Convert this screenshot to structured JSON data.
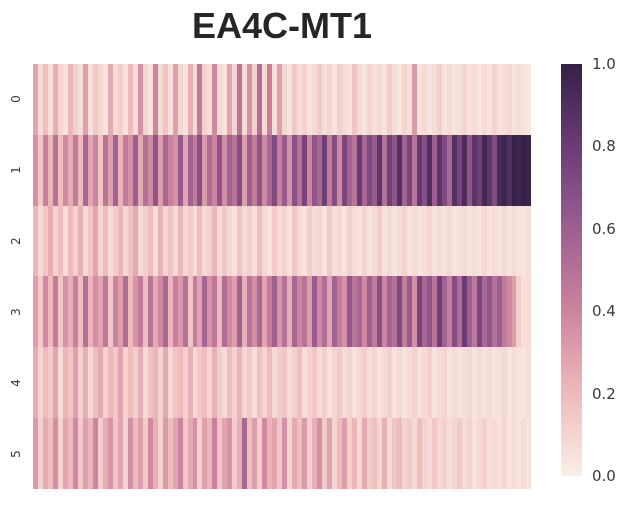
{
  "title": "EA4C-MT1",
  "colors": {
    "background": "#ffffff",
    "title_text": "#262626",
    "tick_text": "#3a3a3a"
  },
  "chart_data": {
    "type": "heatmap",
    "title": "EA4C-MT1",
    "row_labels": [
      "0",
      "1",
      "2",
      "3",
      "4",
      "5"
    ],
    "x_axis": {
      "tick_labels_visible": false,
      "label": ""
    },
    "y_axis": {
      "label": "",
      "tick_rotation_deg": 90
    },
    "grid": false,
    "colorbar": {
      "position": "right",
      "min": 0.0,
      "max": 1.0,
      "tick_labels": [
        "1.0",
        "0.8",
        "0.6",
        "0.4",
        "0.2",
        "0.0"
      ]
    },
    "colormap_stops": [
      {
        "v": 0.0,
        "color": "#faefe7"
      },
      {
        "v": 0.2,
        "color": "#eebabc"
      },
      {
        "v": 0.4,
        "color": "#cd849e"
      },
      {
        "v": 0.6,
        "color": "#9c5f90"
      },
      {
        "v": 0.8,
        "color": "#6a3c75"
      },
      {
        "v": 1.0,
        "color": "#342147"
      }
    ],
    "matrix": [
      [
        0.28,
        0.08,
        0.18,
        0.06,
        0.25,
        0.1,
        0.05,
        0.22,
        0.12,
        0.07,
        0.3,
        0.06,
        0.15,
        0.09,
        0.04,
        0.26,
        0.08,
        0.13,
        0.05,
        0.2,
        0.07,
        0.35,
        0.1,
        0.05,
        0.4,
        0.08,
        0.16,
        0.06,
        0.3,
        0.09,
        0.05,
        0.24,
        0.07,
        0.45,
        0.11,
        0.06,
        0.38,
        0.08,
        0.05,
        0.28,
        0.1,
        0.48,
        0.07,
        0.35,
        0.12,
        0.52,
        0.08,
        0.42,
        0.06,
        0.3,
        0.09,
        0.05,
        0.15,
        0.07,
        0.11,
        0.05,
        0.08,
        0.14,
        0.06,
        0.1,
        0.04,
        0.12,
        0.07,
        0.05,
        0.16,
        0.08,
        0.04,
        0.11,
        0.06,
        0.09,
        0.05,
        0.13,
        0.07,
        0.04,
        0.1,
        0.06,
        0.32,
        0.05,
        0.08,
        0.04,
        0.07,
        0.12,
        0.05,
        0.08,
        0.04,
        0.06,
        0.1,
        0.05,
        0.07,
        0.04,
        0.08,
        0.05,
        0.11,
        0.04,
        0.06,
        0.09,
        0.04,
        0.07,
        0.05,
        0.03
      ],
      [
        0.35,
        0.15,
        0.42,
        0.22,
        0.5,
        0.18,
        0.38,
        0.25,
        0.45,
        0.2,
        0.55,
        0.28,
        0.4,
        0.16,
        0.48,
        0.3,
        0.58,
        0.22,
        0.44,
        0.35,
        0.6,
        0.26,
        0.5,
        0.38,
        0.65,
        0.3,
        0.55,
        0.42,
        0.35,
        0.62,
        0.28,
        0.58,
        0.45,
        0.68,
        0.32,
        0.52,
        0.4,
        0.65,
        0.36,
        0.58,
        0.48,
        0.7,
        0.3,
        0.6,
        0.44,
        0.66,
        0.38,
        0.55,
        0.72,
        0.42,
        0.62,
        0.35,
        0.68,
        0.5,
        0.75,
        0.4,
        0.65,
        0.55,
        0.78,
        0.45,
        0.7,
        0.38,
        0.74,
        0.58,
        0.48,
        0.8,
        0.55,
        0.72,
        0.62,
        0.85,
        0.5,
        0.78,
        0.65,
        0.88,
        0.58,
        0.75,
        0.48,
        0.82,
        0.68,
        0.9,
        0.6,
        0.85,
        0.72,
        0.55,
        0.88,
        0.75,
        0.92,
        0.65,
        0.86,
        0.78,
        0.95,
        0.85,
        0.7,
        0.92,
        0.97,
        0.9,
        0.99,
        0.96,
        1.0,
        0.98
      ],
      [
        0.22,
        0.08,
        0.15,
        0.25,
        0.1,
        0.18,
        0.06,
        0.2,
        0.12,
        0.24,
        0.08,
        0.16,
        0.28,
        0.1,
        0.2,
        0.07,
        0.14,
        0.22,
        0.09,
        0.17,
        0.26,
        0.08,
        0.13,
        0.19,
        0.06,
        0.23,
        0.1,
        0.16,
        0.07,
        0.21,
        0.09,
        0.14,
        0.06,
        0.18,
        0.08,
        0.12,
        0.22,
        0.07,
        0.15,
        0.09,
        0.05,
        0.17,
        0.08,
        0.12,
        0.06,
        0.19,
        0.09,
        0.05,
        0.14,
        0.07,
        0.11,
        0.05,
        0.16,
        0.08,
        0.04,
        0.13,
        0.07,
        0.1,
        0.05,
        0.15,
        0.06,
        0.09,
        0.04,
        0.12,
        0.07,
        0.05,
        0.1,
        0.04,
        0.08,
        0.13,
        0.05,
        0.09,
        0.04,
        0.07,
        0.11,
        0.05,
        0.08,
        0.04,
        0.06,
        0.1,
        0.04,
        0.07,
        0.05,
        0.09,
        0.04,
        0.06,
        0.08,
        0.04,
        0.07,
        0.05,
        0.09,
        0.04,
        0.06,
        0.05,
        0.08,
        0.04,
        0.07,
        0.05,
        0.04,
        0.06
      ],
      [
        0.3,
        0.14,
        0.38,
        0.2,
        0.45,
        0.16,
        0.35,
        0.24,
        0.42,
        0.18,
        0.5,
        0.22,
        0.36,
        0.28,
        0.46,
        0.15,
        0.4,
        0.3,
        0.52,
        0.2,
        0.34,
        0.44,
        0.18,
        0.48,
        0.26,
        0.38,
        0.55,
        0.22,
        0.42,
        0.32,
        0.5,
        0.16,
        0.44,
        0.28,
        0.56,
        0.35,
        0.46,
        0.2,
        0.52,
        0.38,
        0.3,
        0.58,
        0.24,
        0.48,
        0.36,
        0.54,
        0.28,
        0.44,
        0.6,
        0.34,
        0.5,
        0.25,
        0.56,
        0.4,
        0.48,
        0.3,
        0.62,
        0.38,
        0.52,
        0.28,
        0.58,
        0.44,
        0.35,
        0.64,
        0.48,
        0.55,
        0.38,
        0.6,
        0.45,
        0.68,
        0.4,
        0.58,
        0.5,
        0.72,
        0.44,
        0.62,
        0.36,
        0.75,
        0.55,
        0.65,
        0.48,
        0.78,
        0.58,
        0.42,
        0.7,
        0.52,
        0.8,
        0.6,
        0.46,
        0.74,
        0.55,
        0.65,
        0.5,
        0.6,
        0.45,
        0.38,
        0.3,
        0.12,
        0.06,
        0.08
      ],
      [
        0.25,
        0.1,
        0.2,
        0.14,
        0.28,
        0.08,
        0.22,
        0.16,
        0.3,
        0.12,
        0.24,
        0.09,
        0.18,
        0.26,
        0.11,
        0.21,
        0.15,
        0.28,
        0.1,
        0.19,
        0.13,
        0.24,
        0.08,
        0.17,
        0.22,
        0.11,
        0.26,
        0.09,
        0.16,
        0.2,
        0.12,
        0.23,
        0.08,
        0.15,
        0.19,
        0.1,
        0.24,
        0.13,
        0.07,
        0.18,
        0.11,
        0.22,
        0.09,
        0.14,
        0.06,
        0.17,
        0.1,
        0.2,
        0.08,
        0.13,
        0.16,
        0.07,
        0.12,
        0.18,
        0.06,
        0.11,
        0.15,
        0.08,
        0.13,
        0.05,
        0.1,
        0.14,
        0.07,
        0.11,
        0.05,
        0.09,
        0.13,
        0.06,
        0.1,
        0.04,
        0.08,
        0.12,
        0.05,
        0.09,
        0.04,
        0.07,
        0.11,
        0.05,
        0.08,
        0.12,
        0.04,
        0.07,
        0.1,
        0.05,
        0.08,
        0.04,
        0.06,
        0.09,
        0.04,
        0.07,
        0.05,
        0.08,
        0.04,
        0.06,
        0.09,
        0.04,
        0.07,
        0.05,
        0.04,
        0.06
      ],
      [
        0.32,
        0.12,
        0.26,
        0.18,
        0.36,
        0.1,
        0.28,
        0.2,
        0.38,
        0.14,
        0.3,
        0.22,
        0.4,
        0.12,
        0.25,
        0.34,
        0.16,
        0.28,
        0.1,
        0.36,
        0.2,
        0.3,
        0.14,
        0.38,
        0.24,
        0.11,
        0.32,
        0.18,
        0.28,
        0.4,
        0.15,
        0.26,
        0.35,
        0.12,
        0.3,
        0.22,
        0.42,
        0.16,
        0.28,
        0.34,
        0.13,
        0.24,
        0.55,
        0.18,
        0.3,
        0.12,
        0.38,
        0.22,
        0.28,
        0.15,
        0.35,
        0.1,
        0.26,
        0.18,
        0.32,
        0.12,
        0.24,
        0.36,
        0.14,
        0.28,
        0.1,
        0.2,
        0.3,
        0.12,
        0.22,
        0.08,
        0.26,
        0.14,
        0.18,
        0.1,
        0.24,
        0.08,
        0.16,
        0.2,
        0.1,
        0.14,
        0.08,
        0.18,
        0.11,
        0.07,
        0.15,
        0.09,
        0.12,
        0.06,
        0.1,
        0.14,
        0.07,
        0.11,
        0.05,
        0.09,
        0.12,
        0.06,
        0.08,
        0.05,
        0.1,
        0.04,
        0.07,
        0.05,
        0.08,
        0.04
      ]
    ]
  }
}
